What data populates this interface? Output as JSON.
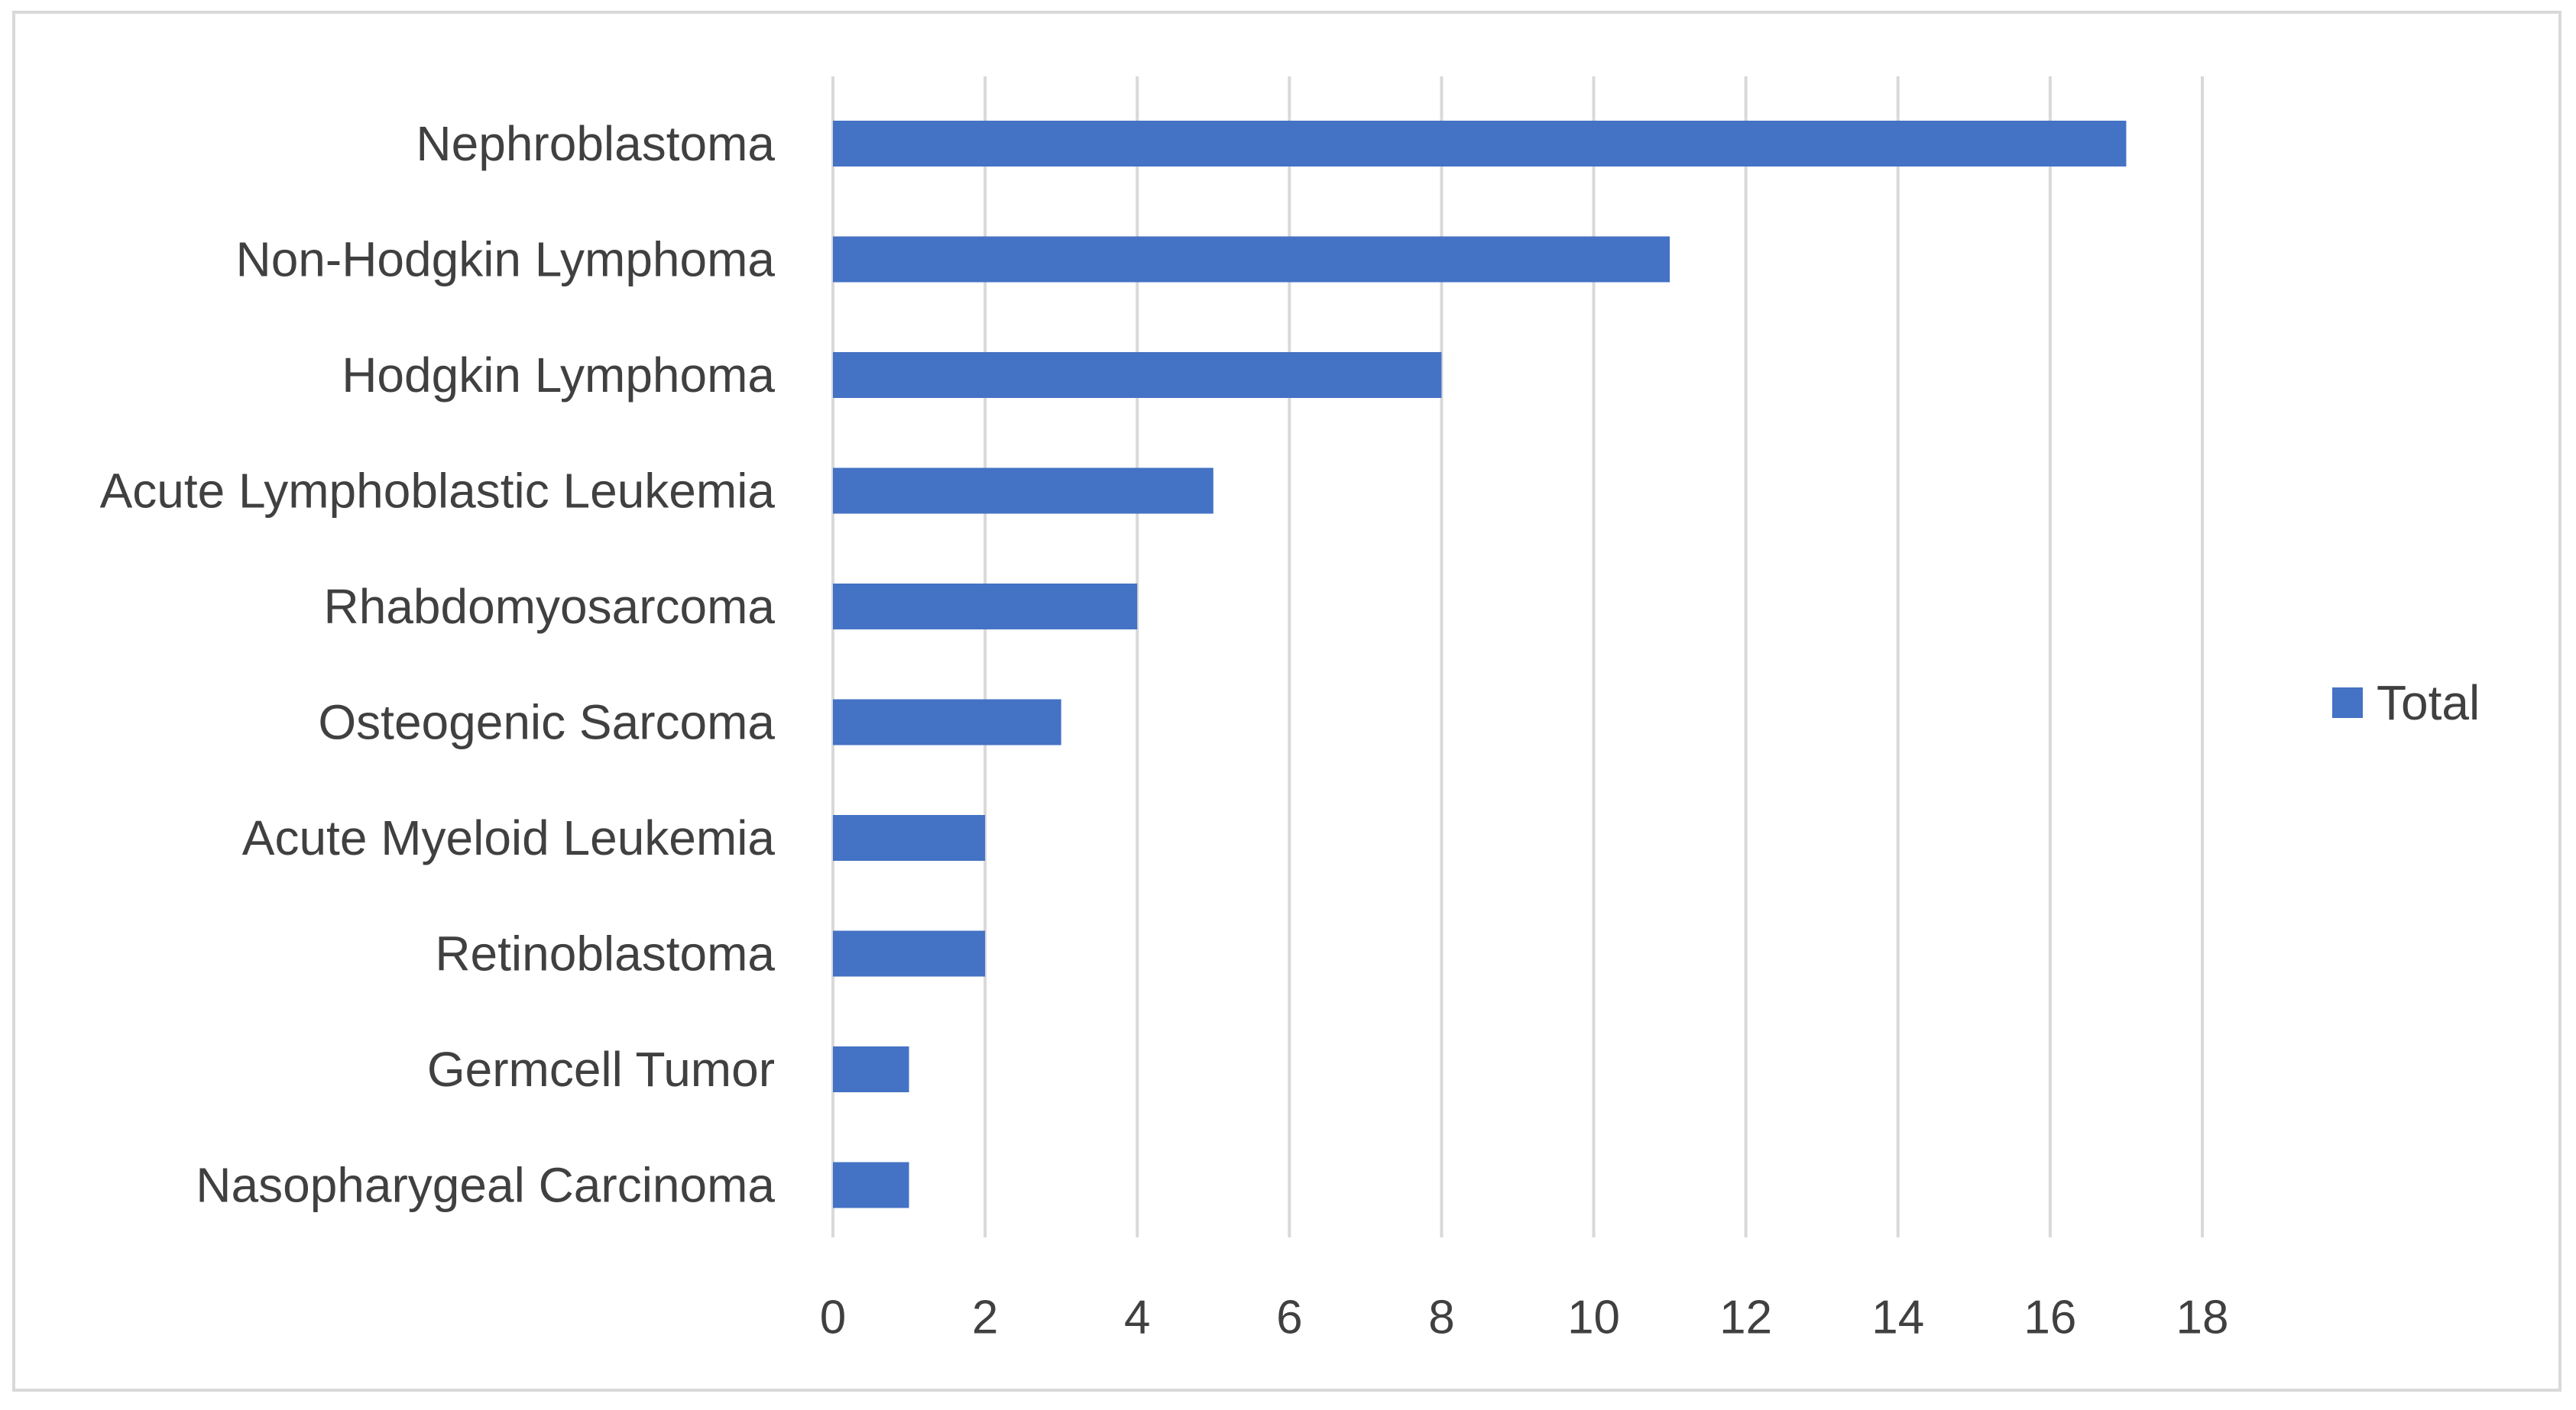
{
  "chart_data": {
    "type": "bar",
    "orientation": "horizontal",
    "categories": [
      "Nephroblastoma",
      "Non-Hodgkin Lymphoma",
      "Hodgkin Lymphoma",
      "Acute Lymphoblastic Leukemia",
      "Rhabdomyosarcoma",
      "Osteogenic Sarcoma",
      "Acute Myeloid Leukemia",
      "Retinoblastoma",
      "Germcell Tumor",
      "Nasopharygeal Carcinoma"
    ],
    "series": [
      {
        "name": "Total",
        "values": [
          17,
          11,
          8,
          5,
          4,
          3,
          2,
          2,
          1,
          1
        ]
      }
    ],
    "title": "",
    "xlabel": "",
    "ylabel": "",
    "xlim": [
      0,
      18
    ],
    "xticks": [
      0,
      2,
      4,
      6,
      8,
      10,
      12,
      14,
      16,
      18
    ],
    "grid": "vertical",
    "legend_position": "right",
    "colors": {
      "bar": "#4472c4",
      "grid": "#d9d9d9",
      "text": "#404040",
      "frame": "#d9d9d9"
    }
  }
}
